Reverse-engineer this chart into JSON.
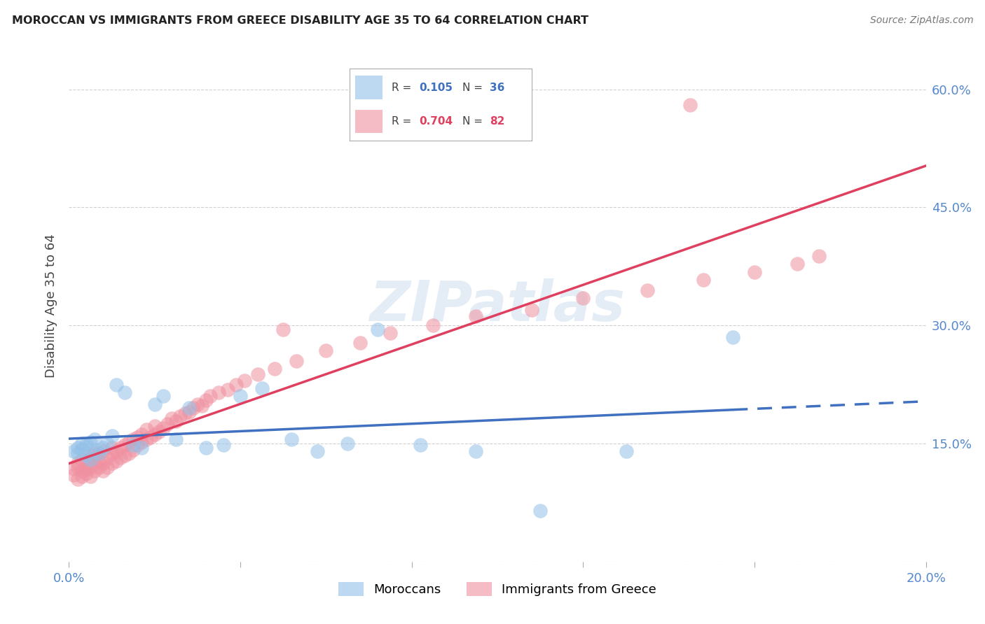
{
  "title": "MOROCCAN VS IMMIGRANTS FROM GREECE DISABILITY AGE 35 TO 64 CORRELATION CHART",
  "source": "Source: ZipAtlas.com",
  "ylabel_label": "Disability Age 35 to 64",
  "xlim": [
    0.0,
    0.2
  ],
  "ylim": [
    0.0,
    0.65
  ],
  "moroccan_R": 0.105,
  "moroccan_N": 36,
  "greece_R": 0.704,
  "greece_N": 82,
  "moroccan_color": "#92C0E8",
  "greece_color": "#F090A0",
  "moroccan_line_color": "#4070C0",
  "greece_line_color": "#E04060",
  "background_color": "#FFFFFF",
  "mor_x": [
    0.001,
    0.002,
    0.002,
    0.003,
    0.003,
    0.004,
    0.004,
    0.005,
    0.005,
    0.006,
    0.006,
    0.007,
    0.008,
    0.009,
    0.01,
    0.011,
    0.013,
    0.015,
    0.017,
    0.02,
    0.022,
    0.025,
    0.028,
    0.032,
    0.036,
    0.04,
    0.045,
    0.052,
    0.058,
    0.065,
    0.072,
    0.082,
    0.095,
    0.11,
    0.13,
    0.155
  ],
  "mor_y": [
    0.14,
    0.145,
    0.138,
    0.143,
    0.15,
    0.135,
    0.148,
    0.13,
    0.152,
    0.142,
    0.155,
    0.138,
    0.145,
    0.15,
    0.16,
    0.225,
    0.215,
    0.148,
    0.145,
    0.2,
    0.21,
    0.155,
    0.195,
    0.145,
    0.148,
    0.21,
    0.22,
    0.155,
    0.14,
    0.15,
    0.295,
    0.148,
    0.14,
    0.065,
    0.14,
    0.285
  ],
  "gre_x": [
    0.001,
    0.001,
    0.002,
    0.002,
    0.002,
    0.003,
    0.003,
    0.003,
    0.004,
    0.004,
    0.004,
    0.005,
    0.005,
    0.005,
    0.005,
    0.006,
    0.006,
    0.006,
    0.007,
    0.007,
    0.007,
    0.008,
    0.008,
    0.008,
    0.009,
    0.009,
    0.01,
    0.01,
    0.01,
    0.011,
    0.011,
    0.012,
    0.012,
    0.013,
    0.013,
    0.014,
    0.014,
    0.015,
    0.015,
    0.016,
    0.016,
    0.017,
    0.017,
    0.018,
    0.018,
    0.019,
    0.02,
    0.02,
    0.021,
    0.022,
    0.023,
    0.024,
    0.025,
    0.026,
    0.027,
    0.028,
    0.029,
    0.03,
    0.031,
    0.032,
    0.033,
    0.035,
    0.037,
    0.039,
    0.041,
    0.044,
    0.048,
    0.053,
    0.06,
    0.068,
    0.075,
    0.085,
    0.095,
    0.108,
    0.12,
    0.135,
    0.148,
    0.16,
    0.17,
    0.175,
    0.145,
    0.05
  ],
  "gre_y": [
    0.11,
    0.118,
    0.105,
    0.12,
    0.125,
    0.108,
    0.115,
    0.13,
    0.112,
    0.118,
    0.125,
    0.108,
    0.12,
    0.13,
    0.135,
    0.115,
    0.125,
    0.138,
    0.12,
    0.128,
    0.138,
    0.115,
    0.125,
    0.14,
    0.12,
    0.132,
    0.125,
    0.138,
    0.145,
    0.128,
    0.14,
    0.132,
    0.145,
    0.135,
    0.148,
    0.138,
    0.152,
    0.142,
    0.155,
    0.148,
    0.158,
    0.152,
    0.162,
    0.155,
    0.168,
    0.158,
    0.162,
    0.172,
    0.165,
    0.17,
    0.175,
    0.182,
    0.178,
    0.185,
    0.188,
    0.19,
    0.195,
    0.2,
    0.198,
    0.205,
    0.21,
    0.215,
    0.218,
    0.225,
    0.23,
    0.238,
    0.245,
    0.255,
    0.268,
    0.278,
    0.29,
    0.3,
    0.312,
    0.32,
    0.335,
    0.345,
    0.358,
    0.368,
    0.378,
    0.388,
    0.58,
    0.295
  ]
}
